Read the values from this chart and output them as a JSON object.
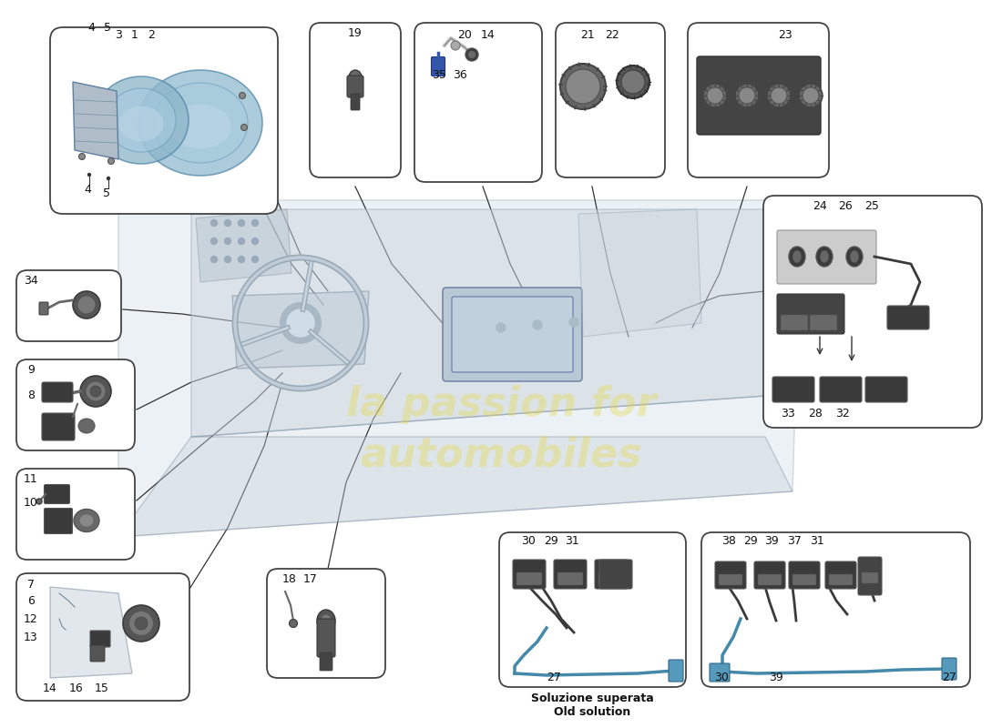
{
  "background_color": "#ffffff",
  "watermark_line1": "la passion for",
  "watermark_line2": "automobiles",
  "watermark_color": "#e8d840",
  "watermark_alpha": 0.35,
  "line_color": "#333333",
  "box_edge_color": "#444444",
  "part_blue": "#8ab8d0",
  "part_dark": "#3a3a3a",
  "part_mid": "#686868",
  "part_light": "#a8a8a8",
  "car_fill": "#dce6ee",
  "car_alpha": 0.55
}
